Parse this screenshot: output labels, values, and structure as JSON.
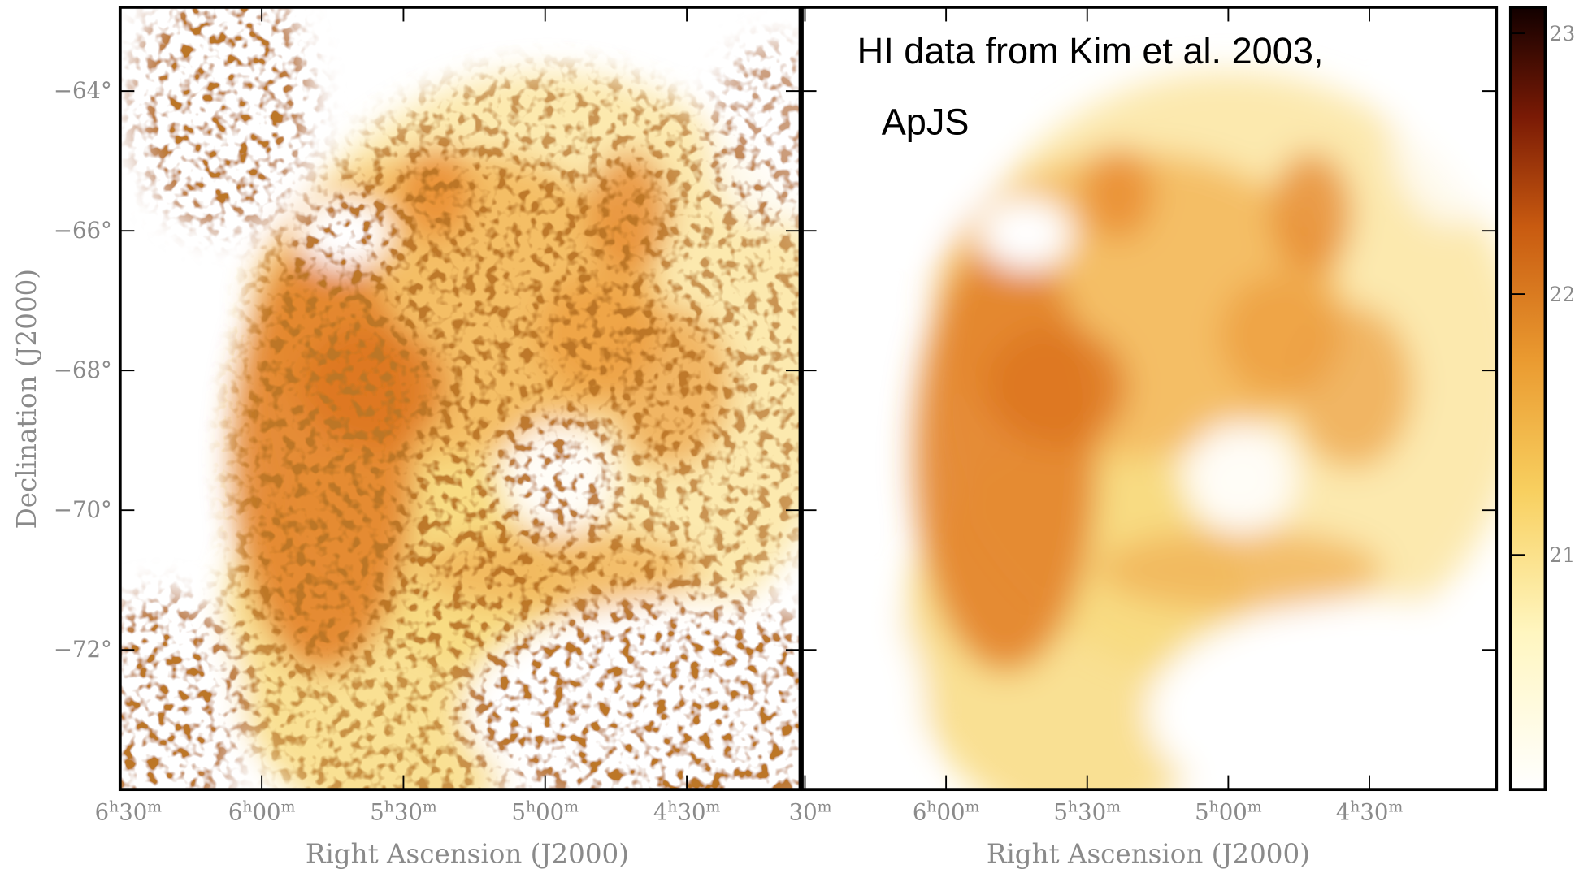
{
  "annotation": [
    "HI data from Kim et al. 2003,",
    "ApJS"
  ],
  "panels": [
    {
      "xlabel": "Right Ascension (J2000)",
      "ylabel": "Declination (J2000)",
      "xlim": [
        6.5,
        4.1
      ],
      "ylim": [
        -62.8,
        -74.0
      ],
      "xticks": [
        {
          "value": 6.5,
          "label": "6h30m"
        },
        {
          "value": 6,
          "label": "6h00m"
        },
        {
          "value": 5.5,
          "label": "5h30m"
        },
        {
          "value": 5,
          "label": "5h00m"
        },
        {
          "value": 4.5,
          "label": "4h30m"
        }
      ],
      "yticks": [
        {
          "value": -64,
          "label": "−64°"
        },
        {
          "value": -66,
          "label": "−66°"
        },
        {
          "value": -68,
          "label": "−68°"
        },
        {
          "value": -70,
          "label": "−70°"
        },
        {
          "value": -72,
          "label": "−72°"
        }
      ]
    },
    {
      "xlabel": "Right Ascension (J2000)",
      "xlim": [
        6.51,
        4.05
      ],
      "ylim": [
        -62.8,
        -74.0
      ],
      "xticks": [
        {
          "value": 6.5,
          "label": "30m"
        },
        {
          "value": 6,
          "label": "6h00m"
        },
        {
          "value": 5.5,
          "label": "5h30m"
        },
        {
          "value": 5,
          "label": "5h00m"
        },
        {
          "value": 4.5,
          "label": "4h30m"
        }
      ]
    }
  ],
  "colorbar": {
    "lim": [
      20.1,
      23.1
    ],
    "ticks": [
      21,
      22,
      23
    ]
  }
}
